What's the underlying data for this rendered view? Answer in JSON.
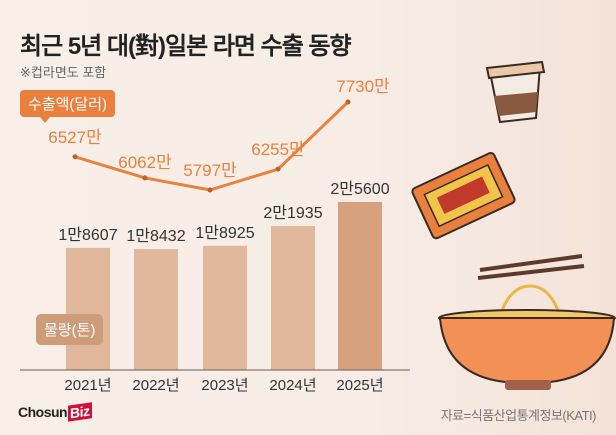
{
  "header": {
    "title": "최근 5년 대(對)일본 라면 수출 동향",
    "subtitle": "※컵라면도 포함"
  },
  "legend": {
    "line": "수출액(달러)",
    "bar": "물량(톤)"
  },
  "footer": {
    "logo": "ChosunBiz",
    "logo_main": "Chosun",
    "logo_accent": "Biz",
    "source": "자료=식품산업통계정보(KATI)"
  },
  "colors": {
    "line": "#e9803e",
    "bar": "#e2b89c",
    "bar_highlight": "#d7a17f",
    "axis": "#6b5a50"
  },
  "chart_data": {
    "type": "bar+line",
    "categories": [
      "2021년",
      "2022년",
      "2023년",
      "2024년",
      "2025년"
    ],
    "series": [
      {
        "name": "물량(톤)",
        "type": "bar",
        "values": [
          18607,
          18432,
          18925,
          21935,
          25600
        ],
        "labels": [
          "1만8607",
          "1만8432",
          "1만8925",
          "2만1935",
          "2만5600"
        ]
      },
      {
        "name": "수출액(달러)",
        "type": "line",
        "values": [
          6527,
          6062,
          5797,
          6255,
          7730
        ],
        "unit": "만",
        "labels": [
          "6527만",
          "6062만",
          "5797만",
          "6255만",
          "7730만"
        ]
      }
    ],
    "title": "최근 5년 대(對)일본 라면 수출 동향"
  }
}
